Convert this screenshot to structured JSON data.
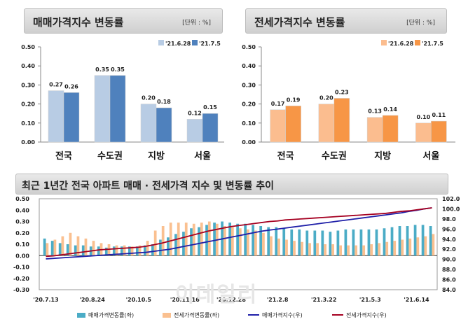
{
  "chart_data": [
    {
      "type": "bar",
      "title": "매매가격지수 변동률",
      "unit": "[단위 : %]",
      "categories": [
        "전국",
        "수도권",
        "지방",
        "서울"
      ],
      "series": [
        {
          "name": "'21.6.28",
          "values": [
            0.27,
            0.35,
            0.2,
            0.12
          ],
          "labels": [
            "0.27",
            "0.35",
            "0.20",
            "0.12"
          ]
        },
        {
          "name": "'21.7.5",
          "values": [
            0.26,
            0.35,
            0.18,
            0.15
          ],
          "labels": [
            "0.26",
            "0.35",
            "0.18",
            "0.15"
          ]
        }
      ],
      "ylim": [
        0,
        0.5
      ],
      "yticks": [
        "0.00",
        "0.10",
        "0.20",
        "0.30",
        "0.40",
        "0.50"
      ],
      "colors": [
        "#b8cce4",
        "#4f81bd"
      ]
    },
    {
      "type": "bar",
      "title": "전세가격지수 변동률",
      "unit": "[단위 : %]",
      "categories": [
        "전국",
        "수도권",
        "지방",
        "서울"
      ],
      "series": [
        {
          "name": "'21.6.28",
          "values": [
            0.17,
            0.2,
            0.13,
            0.1
          ],
          "labels": [
            "0.17",
            "0.20",
            "0.13",
            "0.10"
          ]
        },
        {
          "name": "'21.7.5",
          "values": [
            0.19,
            0.23,
            0.14,
            0.11
          ],
          "labels": [
            "0.19",
            "0.23",
            "0.14",
            "0.11"
          ]
        }
      ],
      "ylim": [
        0,
        0.5
      ],
      "yticks": [
        "0.00",
        "0.10",
        "0.20",
        "0.30",
        "0.40",
        "0.50"
      ],
      "colors": [
        "#fbbd8f",
        "#f79646"
      ]
    },
    {
      "type": "bar+line",
      "title": "최근 1년간 전국 아파트 매매 · 전세가격 지수 및 변동률 추이",
      "x_tick_labels": [
        "'20.7.13",
        "'20.8.24",
        "'20.10.5",
        "'20.11.16",
        "'20.12.28",
        "'21.2.8",
        "'21.3.22",
        "'21.5.3",
        "'21.6.14"
      ],
      "y_left": {
        "ylim": [
          -0.3,
          0.5
        ],
        "ticks": [
          "-0.30",
          "-0.20",
          "-0.10",
          "0.00",
          "0.10",
          "0.20",
          "0.30",
          "0.40",
          "0.50"
        ]
      },
      "y_right": {
        "ylim": [
          84.0,
          102.0
        ],
        "ticks": [
          "84.0",
          "86.0",
          "88.0",
          "90.0",
          "92.0",
          "94.0",
          "96.0",
          "98.0",
          "100.0",
          "102.0"
        ]
      },
      "series": [
        {
          "name": "매매가격변동률(좌)",
          "axis": "left",
          "kind": "bar",
          "color": "#4bacc6",
          "values": [
            0.15,
            0.13,
            0.11,
            0.1,
            0.09,
            0.09,
            0.08,
            0.08,
            0.07,
            0.08,
            0.08,
            0.08,
            0.08,
            0.09,
            0.1,
            0.14,
            0.16,
            0.19,
            0.21,
            0.24,
            0.25,
            0.27,
            0.29,
            0.3,
            0.29,
            0.28,
            0.28,
            0.27,
            0.26,
            0.25,
            0.25,
            0.24,
            0.23,
            0.23,
            0.22,
            0.22,
            0.22,
            0.21,
            0.22,
            0.23,
            0.23,
            0.23,
            0.23,
            0.23,
            0.24,
            0.25,
            0.26,
            0.26,
            0.27,
            0.27,
            0.26
          ]
        },
        {
          "name": "전세가격변동률(좌)",
          "axis": "left",
          "kind": "bar",
          "color": "#fac090",
          "values": [
            0.11,
            0.14,
            0.17,
            0.2,
            0.17,
            0.15,
            0.13,
            0.11,
            0.1,
            0.09,
            0.09,
            0.08,
            0.09,
            0.13,
            0.22,
            0.26,
            0.29,
            0.29,
            0.29,
            0.28,
            0.29,
            0.3,
            0.28,
            0.26,
            0.25,
            0.24,
            0.23,
            0.22,
            0.2,
            0.17,
            0.15,
            0.14,
            0.13,
            0.12,
            0.11,
            0.11,
            0.1,
            0.1,
            0.09,
            0.09,
            0.09,
            0.09,
            0.1,
            0.11,
            0.12,
            0.13,
            0.14,
            0.15,
            0.16,
            0.17,
            0.19
          ]
        },
        {
          "name": "매매가격지수(우)",
          "axis": "right",
          "kind": "line",
          "color": "#1f1fa8",
          "values": [
            90.1,
            90.2,
            90.3,
            90.4,
            90.5,
            90.6,
            90.7,
            90.8,
            90.9,
            91.0,
            91.1,
            91.2,
            91.3,
            91.4,
            91.6,
            91.8,
            92.0,
            92.3,
            92.6,
            92.9,
            93.2,
            93.5,
            93.8,
            94.1,
            94.4,
            94.7,
            95.0,
            95.3,
            95.6,
            95.8,
            96.0,
            96.2,
            96.4,
            96.6,
            96.8,
            97.0,
            97.2,
            97.4,
            97.6,
            97.8,
            98.0,
            98.2,
            98.4,
            98.6,
            98.8,
            99.0,
            99.2,
            99.5,
            99.7,
            100.0,
            100.2
          ]
        },
        {
          "name": "전세가격지수(우)",
          "axis": "right",
          "kind": "line",
          "color": "#a50021",
          "values": [
            90.6,
            90.7,
            90.9,
            91.1,
            91.3,
            91.5,
            91.7,
            91.9,
            92.0,
            92.1,
            92.2,
            92.3,
            92.4,
            92.6,
            92.9,
            93.2,
            93.6,
            94.0,
            94.4,
            94.8,
            95.2,
            95.6,
            95.9,
            96.2,
            96.5,
            96.7,
            96.9,
            97.1,
            97.3,
            97.5,
            97.6,
            97.8,
            97.9,
            98.0,
            98.1,
            98.2,
            98.3,
            98.4,
            98.5,
            98.6,
            98.7,
            98.8,
            98.9,
            99.0,
            99.1,
            99.3,
            99.5,
            99.6,
            99.8,
            100.0,
            100.2
          ]
        }
      ]
    }
  ],
  "legend1": [
    "'21.6.28",
    "'21.7.5"
  ],
  "legend3": [
    "매매가격변동률(좌)",
    "전세가격변동률(좌)",
    "매매가격지수(우)",
    "전세가격지수(우)"
  ],
  "watermark": "이데일리"
}
